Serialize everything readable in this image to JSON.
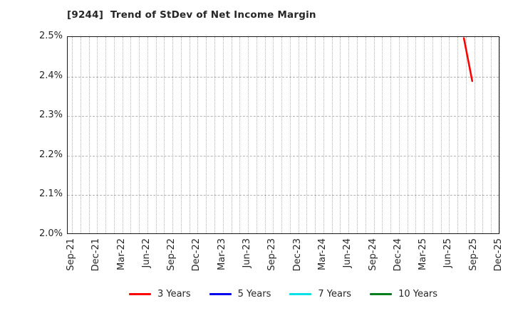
{
  "title": "[9244]  Trend of StDev of Net Income Margin",
  "chart_data": {
    "type": "line",
    "title": "[9244]  Trend of StDev of Net Income Margin",
    "xlabel": "",
    "ylabel": "",
    "y_unit": "%",
    "ylim": [
      2.0,
      2.5
    ],
    "y_ticks": [
      {
        "value": 2.0,
        "label": "2.0%"
      },
      {
        "value": 2.1,
        "label": "2.1%"
      },
      {
        "value": 2.2,
        "label": "2.2%"
      },
      {
        "value": 2.3,
        "label": "2.3%"
      },
      {
        "value": 2.4,
        "label": "2.4%"
      },
      {
        "value": 2.5,
        "label": "2.5%"
      }
    ],
    "x_ticks": [
      "Sep-21",
      "Dec-21",
      "Mar-22",
      "Jun-22",
      "Sep-22",
      "Dec-22",
      "Mar-23",
      "Jun-23",
      "Sep-23",
      "Dec-23",
      "Mar-24",
      "Jun-24",
      "Sep-24",
      "Dec-24",
      "Mar-25",
      "Jun-25",
      "Sep-25",
      "Dec-25"
    ],
    "x_minor_grid": "monthly",
    "grid": true,
    "legend_position": "bottom-center",
    "series": [
      {
        "name": "3 Years",
        "color": "#ff0000",
        "points": [
          {
            "x": "Aug-25",
            "y": 2.497
          },
          {
            "x": "Sep-25",
            "y": 2.388
          }
        ]
      },
      {
        "name": "5 Years",
        "color": "#0000ee",
        "points": []
      },
      {
        "name": "7 Years",
        "color": "#00e0e6",
        "points": []
      },
      {
        "name": "10 Years",
        "color": "#007d1c",
        "points": []
      }
    ]
  },
  "colors": {
    "axis": "#1a1a1a",
    "grid": "#b3b3b3",
    "text": "#262626",
    "background": "#ffffff"
  }
}
